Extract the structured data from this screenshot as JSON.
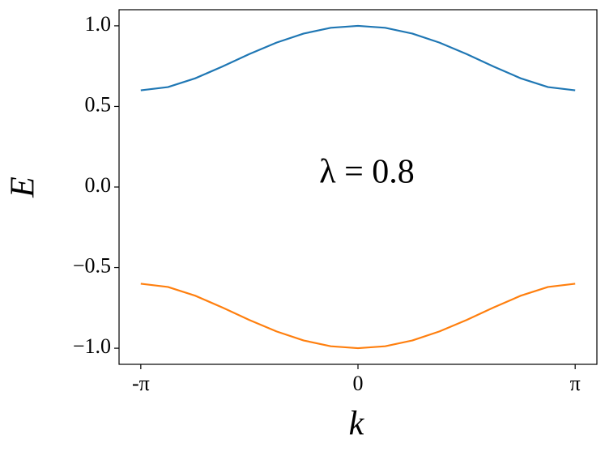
{
  "chart_data": {
    "type": "line",
    "annotation": "λ = 0.8",
    "x_label": "k",
    "y_label": "E",
    "x": [
      -3.142,
      -2.749,
      -2.356,
      -1.963,
      -1.571,
      -1.178,
      -0.785,
      -0.393,
      0,
      0.393,
      0.785,
      1.178,
      1.571,
      1.963,
      2.356,
      2.749,
      3.142
    ],
    "series": [
      {
        "color": "#1f77b4",
        "values": [
          0.6,
          0.62,
          0.674,
          0.747,
          0.825,
          0.896,
          0.952,
          0.988,
          1.0,
          0.988,
          0.952,
          0.896,
          0.825,
          0.747,
          0.674,
          0.62,
          0.6
        ]
      },
      {
        "color": "#ff7f0e",
        "values": [
          -0.6,
          -0.62,
          -0.674,
          -0.747,
          -0.825,
          -0.896,
          -0.952,
          -0.988,
          -1.0,
          -0.988,
          -0.952,
          -0.896,
          -0.825,
          -0.747,
          -0.674,
          -0.62,
          -0.6
        ]
      }
    ],
    "xlim": [
      -3.456,
      3.456
    ],
    "ylim": [
      -1.1,
      1.1
    ],
    "xticks": [
      {
        "value": -3.1416,
        "label": "-π"
      },
      0,
      {
        "value": 3.1416,
        "label": "π"
      }
    ],
    "yticks": [
      {
        "value": -1.0,
        "label": "−1.0"
      },
      {
        "value": -0.5,
        "label": "−0.5"
      },
      {
        "value": 0.0,
        "label": "0.0"
      },
      {
        "value": 0.5,
        "label": "0.5"
      },
      {
        "value": 1.0,
        "label": "1.0"
      }
    ],
    "grid": false
  }
}
